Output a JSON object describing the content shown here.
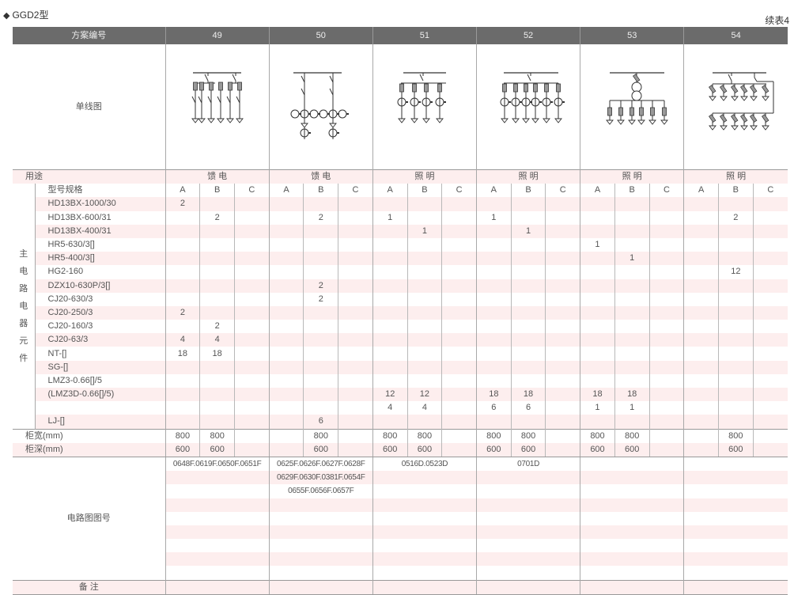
{
  "page": {
    "title": "GGD2型",
    "title_marker": "◆",
    "continuation": "续表4"
  },
  "header": {
    "label": "方案编号",
    "schemes": [
      "49",
      "50",
      "51",
      "52",
      "53",
      "54"
    ]
  },
  "diagram_row": {
    "label": "单线图"
  },
  "usage_row": {
    "label": "用途",
    "values": [
      "馈 电",
      "馈 电",
      "照 明",
      "照 明",
      "照 明",
      "照 明"
    ]
  },
  "spec_row": {
    "label": "型号规格",
    "subcolumns": [
      "A",
      "B",
      "C"
    ]
  },
  "main_circuit_label": [
    "主",
    "电",
    "路",
    "电",
    "器",
    "元",
    "件"
  ],
  "components": [
    {
      "name": "HD13BX-1000/30",
      "values": [
        "2",
        "",
        "",
        "",
        "",
        "",
        "",
        "",
        "",
        "",
        "",
        "",
        "",
        "",
        "",
        "",
        "",
        ""
      ]
    },
    {
      "name": "HD13BX-600/31",
      "values": [
        "",
        "2",
        "",
        "",
        "2",
        "",
        "1",
        "",
        "",
        "1",
        "",
        "",
        "",
        "",
        "",
        "",
        "2",
        ""
      ]
    },
    {
      "name": "HD13BX-400/31",
      "values": [
        "",
        "",
        "",
        "",
        "",
        "",
        "",
        "1",
        "",
        "",
        "1",
        "",
        "",
        "",
        "",
        "",
        "",
        ""
      ]
    },
    {
      "name": "HR5-630/3[]",
      "values": [
        "",
        "",
        "",
        "",
        "",
        "",
        "",
        "",
        "",
        "",
        "",
        "",
        "1",
        "",
        "",
        "",
        "",
        ""
      ]
    },
    {
      "name": "HR5-400/3[]",
      "values": [
        "",
        "",
        "",
        "",
        "",
        "",
        "",
        "",
        "",
        "",
        "",
        "",
        "",
        "1",
        "",
        "",
        "",
        ""
      ]
    },
    {
      "name": "HG2-160",
      "values": [
        "",
        "",
        "",
        "",
        "",
        "",
        "",
        "",
        "",
        "",
        "",
        "",
        "",
        "",
        "",
        "",
        "12",
        ""
      ]
    },
    {
      "name": "DZX10-630P/3[]",
      "values": [
        "",
        "",
        "",
        "",
        "2",
        "",
        "",
        "",
        "",
        "",
        "",
        "",
        "",
        "",
        "",
        "",
        "",
        ""
      ]
    },
    {
      "name": "CJ20-630/3",
      "values": [
        "",
        "",
        "",
        "",
        "2",
        "",
        "",
        "",
        "",
        "",
        "",
        "",
        "",
        "",
        "",
        "",
        "",
        ""
      ]
    },
    {
      "name": "CJ20-250/3",
      "values": [
        "2",
        "",
        "",
        "",
        "",
        "",
        "",
        "",
        "",
        "",
        "",
        "",
        "",
        "",
        "",
        "",
        "",
        ""
      ]
    },
    {
      "name": "CJ20-160/3",
      "values": [
        "",
        "2",
        "",
        "",
        "",
        "",
        "",
        "",
        "",
        "",
        "",
        "",
        "",
        "",
        "",
        "",
        "",
        ""
      ]
    },
    {
      "name": "CJ20-63/3",
      "values": [
        "4",
        "4",
        "",
        "",
        "",
        "",
        "",
        "",
        "",
        "",
        "",
        "",
        "",
        "",
        "",
        "",
        "",
        ""
      ]
    },
    {
      "name": "NT-[]",
      "values": [
        "18",
        "18",
        "",
        "",
        "",
        "",
        "",
        "",
        "",
        "",
        "",
        "",
        "",
        "",
        "",
        "",
        "",
        ""
      ]
    },
    {
      "name": "SG-[]",
      "values": [
        "",
        "",
        "",
        "",
        "",
        "",
        "",
        "",
        "",
        "",
        "",
        "",
        "",
        "",
        "",
        "",
        "",
        ""
      ]
    },
    {
      "name": "LMZ3-0.66[]/5",
      "values": [
        "",
        "",
        "",
        "",
        "",
        "",
        "",
        "",
        "",
        "",
        "",
        "",
        "",
        "",
        "",
        "",
        "",
        ""
      ]
    },
    {
      "name": "(LMZ3D-0.66[]/5)",
      "values": [
        "",
        "",
        "",
        "",
        "",
        "",
        "12",
        "12",
        "",
        "18",
        "18",
        "",
        "18",
        "18",
        "",
        "",
        "",
        ""
      ]
    },
    {
      "name": "",
      "values": [
        "",
        "",
        "",
        "",
        "",
        "",
        "4",
        "4",
        "",
        "6",
        "6",
        "",
        "1",
        "1",
        "",
        "",
        "",
        ""
      ]
    },
    {
      "name": "LJ-[]",
      "values": [
        "",
        "",
        "",
        "",
        "6",
        "",
        "",
        "",
        "",
        "",
        "",
        "",
        "",
        "",
        "",
        "",
        "",
        ""
      ]
    }
  ],
  "cabinet_width": {
    "label": "柜宽(mm)",
    "values": [
      "800",
      "800",
      "",
      "",
      "800",
      "",
      "800",
      "800",
      "",
      "800",
      "800",
      "",
      "800",
      "800",
      "",
      "",
      "800",
      ""
    ]
  },
  "cabinet_depth": {
    "label": "柜深(mm)",
    "values": [
      "600",
      "600",
      "",
      "",
      "600",
      "",
      "600",
      "600",
      "",
      "600",
      "600",
      "",
      "600",
      "600",
      "",
      "",
      "600",
      ""
    ]
  },
  "circuit_diagram": {
    "label": "电路图图号",
    "values": [
      [
        "0648F.0619F.0650F.0651F"
      ],
      [
        "0625F.0626F.0627F.0628F",
        "0629F.0630F.0381F.0654F",
        "0655F.0656F.0657F"
      ],
      [
        "0516D.0523D"
      ],
      [
        "0701D"
      ],
      [],
      []
    ]
  },
  "remarks": {
    "label": "备 注"
  },
  "colors": {
    "header_bg": "#6b6b6b",
    "stripe": "#fdeeee",
    "text": "#555555"
  }
}
